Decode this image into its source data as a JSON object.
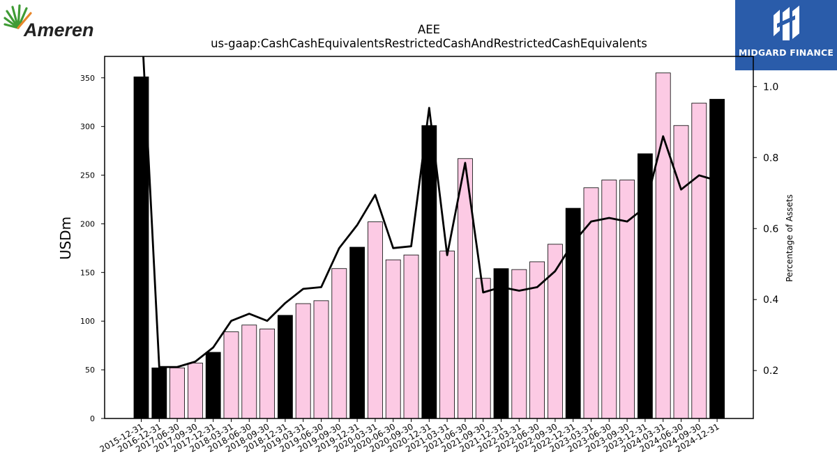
{
  "logos": {
    "left_brand": "Ameren",
    "right_brand": "MIDGARD FINANCE"
  },
  "colors": {
    "annual_bar": "#000000",
    "quarter_bar": "#fccae4",
    "line": "#000000",
    "logo_right_bg": "#2a5caa",
    "ameren_green": "#3f9b35",
    "ameren_orange": "#e8862a"
  },
  "chart_data": {
    "type": "bar",
    "title": "AEE",
    "subtitle": "us-gaap:CashCashEquivalentsRestrictedCashAndRestrictedCashEquivalents",
    "ylabel": "USDm",
    "ylabel_right": "Percentage of Assets",
    "ylim": [
      0,
      372
    ],
    "ylim_right": [
      0.065,
      1.085
    ],
    "yticks": [
      0,
      50,
      100,
      150,
      200,
      250,
      300,
      350
    ],
    "yticks_right": [
      0.2,
      0.4,
      0.6,
      0.8,
      1.0
    ],
    "yticks_right_labels": [
      "0.2",
      "0.4",
      "0.6",
      "0.8",
      "1.0"
    ],
    "grid": false,
    "categories": [
      "2015-12-31",
      "2016-12-31",
      "2017-06-30",
      "2017-09-30",
      "2017-12-31",
      "2018-03-31",
      "2018-06-30",
      "2018-09-30",
      "2018-12-31",
      "2019-03-31",
      "2019-06-30",
      "2019-09-30",
      "2019-12-31",
      "2020-03-31",
      "2020-06-30",
      "2020-09-30",
      "2020-12-31",
      "2021-03-31",
      "2021-06-30",
      "2021-09-30",
      "2021-12-31",
      "2022-03-31",
      "2022-06-30",
      "2022-09-30",
      "2022-12-31",
      "2023-03-31",
      "2023-06-30",
      "2023-09-30",
      "2023-12-31",
      "2024-03-31",
      "2024-06-30",
      "2024-09-30",
      "2024-12-31"
    ],
    "annual": [
      true,
      true,
      false,
      false,
      true,
      false,
      false,
      false,
      true,
      false,
      false,
      false,
      true,
      false,
      false,
      false,
      true,
      false,
      false,
      false,
      true,
      false,
      false,
      false,
      true,
      false,
      false,
      false,
      true,
      false,
      false,
      false,
      true
    ],
    "values": [
      351,
      52,
      52,
      57,
      68,
      89,
      96,
      92,
      106,
      118,
      121,
      154,
      176,
      202,
      163,
      168,
      301,
      172,
      267,
      144,
      154,
      153,
      161,
      179,
      216,
      237,
      245,
      245,
      272,
      355,
      301,
      324,
      328
    ],
    "line_values": [
      1.2,
      0.21,
      0.21,
      0.225,
      0.265,
      0.34,
      0.36,
      0.34,
      0.39,
      0.43,
      0.435,
      0.545,
      0.61,
      0.695,
      0.545,
      0.55,
      0.94,
      0.525,
      0.785,
      0.42,
      0.435,
      0.425,
      0.435,
      0.48,
      0.56,
      0.62,
      0.63,
      0.62,
      0.66,
      0.86,
      0.71,
      0.75,
      0.735
    ]
  }
}
